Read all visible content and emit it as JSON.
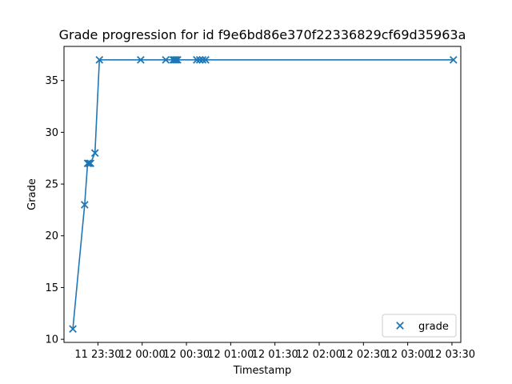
{
  "chart_data": {
    "type": "line",
    "title": "Grade progression for id f9e6bd86e370f22336829cf69d35963a",
    "xlabel": "Timestamp",
    "ylabel": "Grade",
    "xlim": [
      "2000-01-11 23:07",
      "2000-01-12 03:36"
    ],
    "ylim": [
      9.7,
      38.3
    ],
    "x_ticks": [
      {
        "t": "2000-01-11 23:30",
        "label": "11 23:30"
      },
      {
        "t": "2000-01-12 00:00",
        "label": "12 00:00"
      },
      {
        "t": "2000-01-12 00:30",
        "label": "12 00:30"
      },
      {
        "t": "2000-01-12 01:00",
        "label": "12 01:00"
      },
      {
        "t": "2000-01-12 01:30",
        "label": "12 01:30"
      },
      {
        "t": "2000-01-12 02:00",
        "label": "12 02:00"
      },
      {
        "t": "2000-01-12 02:30",
        "label": "12 02:30"
      },
      {
        "t": "2000-01-12 03:00",
        "label": "12 03:00"
      },
      {
        "t": "2000-01-12 03:30",
        "label": "12 03:30"
      }
    ],
    "y_ticks": [
      10,
      15,
      20,
      25,
      30,
      35
    ],
    "legend": {
      "position": "lower-right",
      "entries": [
        "grade"
      ]
    },
    "grid": false,
    "series": [
      {
        "name": "grade",
        "color": "#1f77b4",
        "marker": "x",
        "points": [
          {
            "t": "2000-01-11 23:13",
            "y": 11
          },
          {
            "t": "2000-01-11 23:21",
            "y": 23
          },
          {
            "t": "2000-01-11 23:23",
            "y": 27
          },
          {
            "t": "2000-01-11 23:24",
            "y": 27
          },
          {
            "t": "2000-01-11 23:25",
            "y": 27
          },
          {
            "t": "2000-01-11 23:28",
            "y": 28
          },
          {
            "t": "2000-01-11 23:31",
            "y": 37
          },
          {
            "t": "2000-01-11 23:59",
            "y": 37
          },
          {
            "t": "2000-01-12 00:16",
            "y": 37
          },
          {
            "t": "2000-01-12 00:21",
            "y": 37
          },
          {
            "t": "2000-01-12 00:22",
            "y": 37
          },
          {
            "t": "2000-01-12 00:23",
            "y": 37
          },
          {
            "t": "2000-01-12 00:24",
            "y": 37
          },
          {
            "t": "2000-01-12 00:37",
            "y": 37
          },
          {
            "t": "2000-01-12 00:39",
            "y": 37
          },
          {
            "t": "2000-01-12 00:41",
            "y": 37
          },
          {
            "t": "2000-01-12 00:43",
            "y": 37
          },
          {
            "t": "2000-01-12 03:31",
            "y": 37
          }
        ]
      }
    ]
  }
}
